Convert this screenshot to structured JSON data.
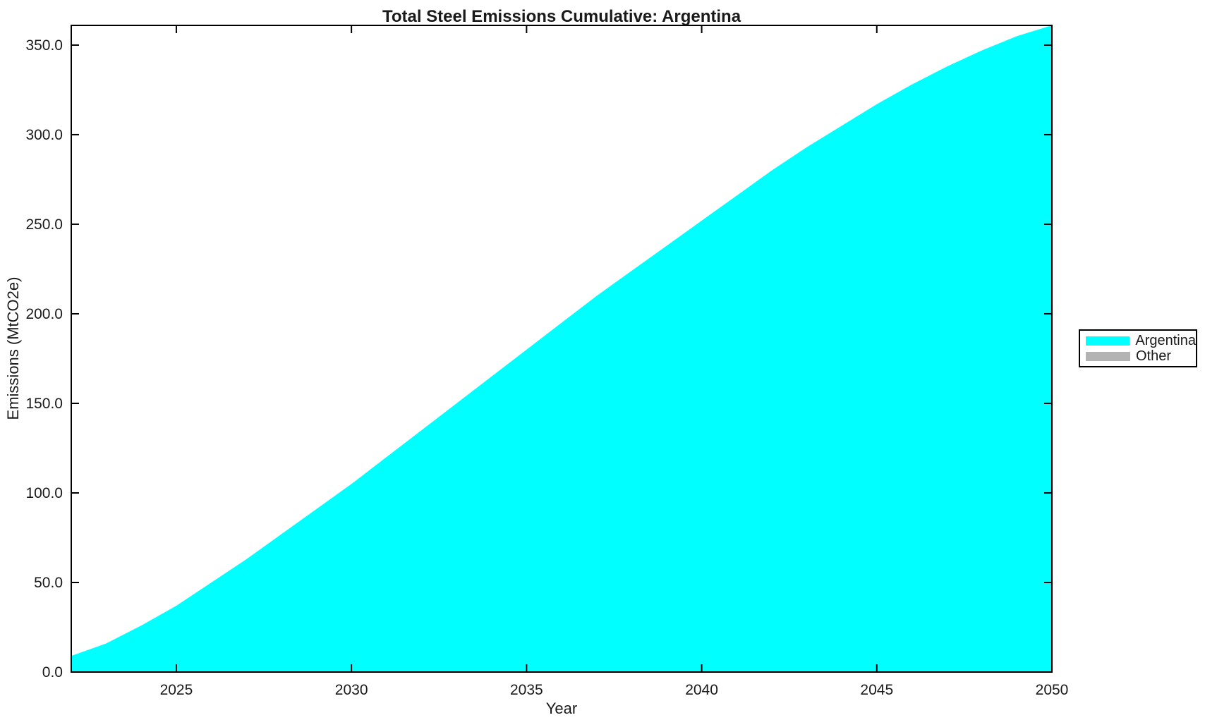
{
  "chart_data": {
    "type": "area",
    "title": "Total Steel Emissions Cumulative: Argentina",
    "xlabel": "Year",
    "ylabel": "Emissions (MtCO2e)",
    "x": [
      2022,
      2023,
      2024,
      2025,
      2026,
      2027,
      2028,
      2029,
      2030,
      2031,
      2032,
      2033,
      2034,
      2035,
      2036,
      2037,
      2038,
      2039,
      2040,
      2041,
      2042,
      2043,
      2044,
      2045,
      2046,
      2047,
      2048,
      2049,
      2050
    ],
    "series": [
      {
        "name": "Argentina",
        "color": "#00ffff",
        "values": [
          9,
          16,
          26,
          37,
          50,
          63,
          77,
          91,
          105,
          120,
          135,
          150,
          165,
          180,
          195,
          210,
          224,
          238,
          252,
          266,
          280,
          293,
          305,
          317,
          328,
          338,
          347,
          355,
          361
        ]
      }
    ],
    "xlim": [
      2022,
      2050
    ],
    "ylim": [
      0,
      361
    ],
    "xticks": [
      2025,
      2030,
      2035,
      2040,
      2045,
      2050
    ],
    "ytick_values": [
      0,
      50,
      100,
      150,
      200,
      250,
      300,
      350
    ],
    "ytick_labels": [
      "0.0",
      "50.0",
      "100.0",
      "150.0",
      "200.0",
      "250.0",
      "300.0",
      "350.0"
    ],
    "grid": false,
    "axis_color": "#000000",
    "text_color": "#1a1a1a",
    "background_color": "#ffffff",
    "legend": {
      "position": "outside-right",
      "entries": [
        {
          "label": "Argentina",
          "color": "#00ffff"
        },
        {
          "label": "Other",
          "color": "#b3b3b3"
        }
      ]
    }
  }
}
